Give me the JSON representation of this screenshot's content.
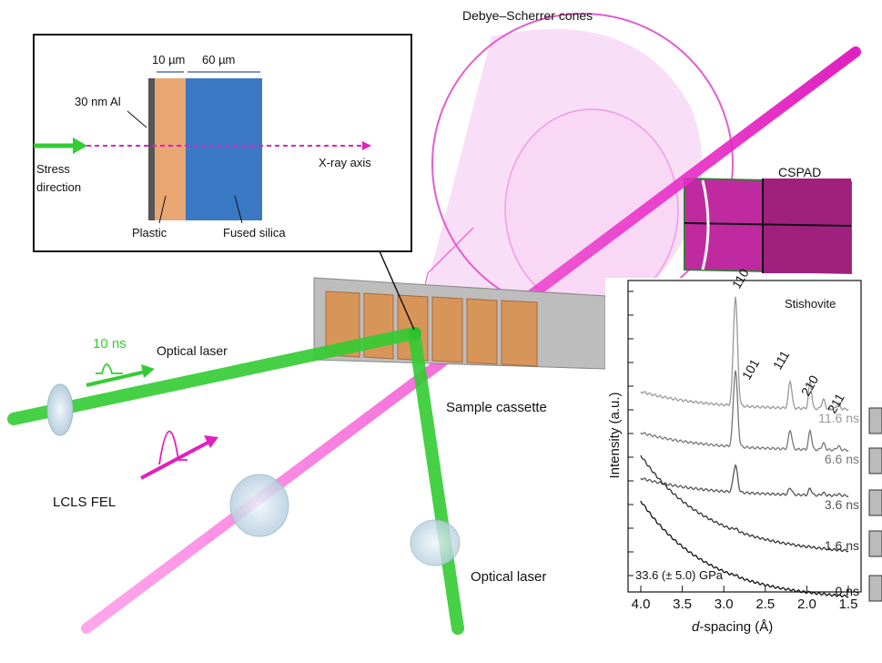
{
  "cones_label": "Debye–Scherrer cones",
  "inset": {
    "dim_plastic": "10 µm",
    "dim_silica": "60 µm",
    "al_layer": "30 nm Al",
    "stress": [
      "Stress",
      "direction"
    ],
    "xray_axis": "X-ray axis",
    "plastic": "Plastic",
    "silica": "Fused silica"
  },
  "labels": {
    "cspad": "CSPAD",
    "pulse": "10 ns",
    "optical_laser_top": "Optical laser",
    "sample_cassette": "Sample cassette",
    "lcls": "LCLS FEL",
    "optical_laser_bottom": "Optical laser"
  },
  "plot": {
    "material": "Stishovite",
    "peaks": [
      "110",
      "101",
      "111",
      "210",
      "211"
    ],
    "times": [
      "11.6 ns",
      "6.6 ns",
      "3.6 ns",
      "1.6 ns",
      "0 ns"
    ],
    "pressure": "33.6 (± 5.0) GPa",
    "ylabel": "Intensity (a.u.)",
    "xlabel_var": "d",
    "xlabel_rest": "-spacing (Å)",
    "xticks": [
      "4.0",
      "3.5",
      "3.0",
      "2.5",
      "2.0",
      "1.5"
    ]
  }
}
